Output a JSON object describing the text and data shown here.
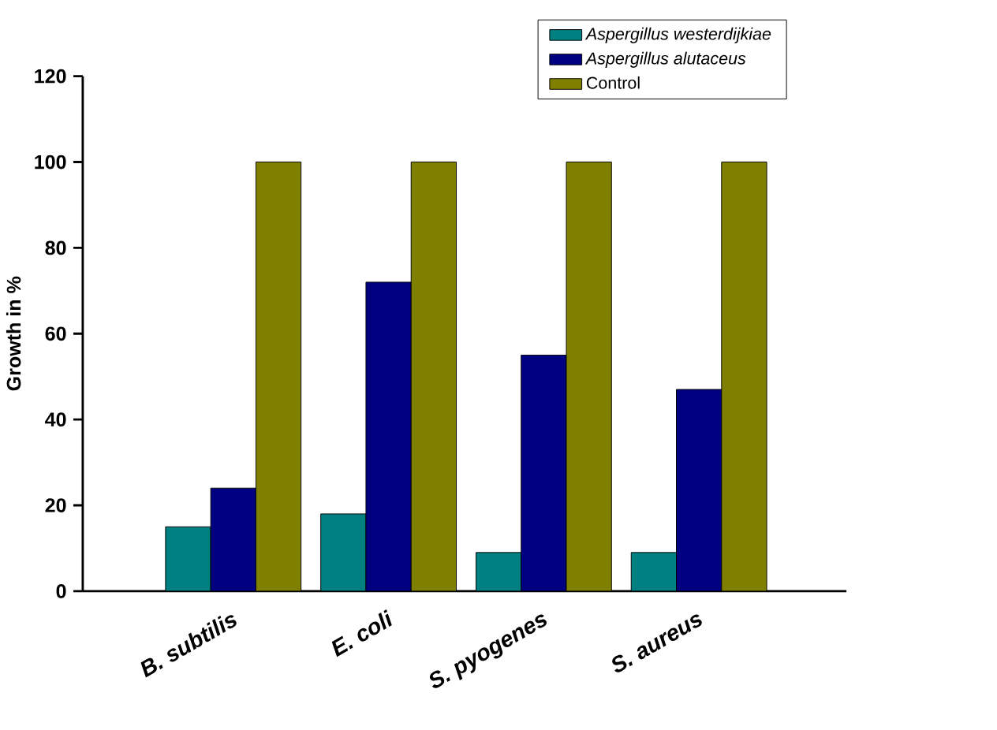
{
  "chart_data": {
    "type": "bar",
    "ylabel": "Growth in %",
    "categories": [
      "B. subtilis",
      "E. coli",
      "S. pyogenes",
      "S. aureus"
    ],
    "series": [
      {
        "name": "*Aspergillus westerdijkiae*",
        "color": "#008080",
        "values": [
          15,
          18,
          9,
          9
        ]
      },
      {
        "name": "*Aspergillus alutaceus*",
        "color": "#000080",
        "values": [
          24,
          72,
          55,
          47
        ]
      },
      {
        "name": "Control",
        "color": "#808000",
        "values": [
          100,
          100,
          100,
          100
        ]
      }
    ],
    "ylim": [
      0,
      120
    ],
    "yticks": [
      0,
      20,
      40,
      60,
      80,
      100,
      120
    ],
    "grid": false,
    "legend": "top right"
  }
}
